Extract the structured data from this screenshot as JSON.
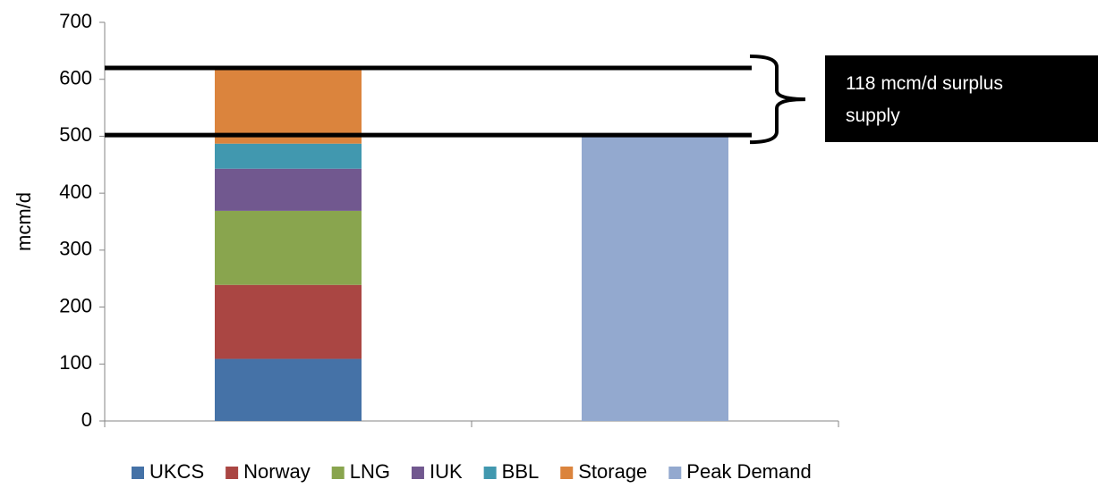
{
  "chart_data": {
    "type": "stacked_bar",
    "y_label": "mcm/d",
    "categories": [
      null,
      null
    ],
    "series": [
      {
        "name": "UKCS",
        "color": "#4572a7",
        "values": [
          109,
          null
        ]
      },
      {
        "name": "Norway",
        "color": "#aa4643",
        "values": [
          130,
          null
        ]
      },
      {
        "name": "LNG",
        "color": "#89a54e",
        "values": [
          130,
          null
        ]
      },
      {
        "name": "IUK",
        "color": "#71588f",
        "values": [
          74,
          null
        ]
      },
      {
        "name": "BBL",
        "color": "#4198af",
        "values": [
          44,
          null
        ]
      },
      {
        "name": "Storage",
        "color": "#db843d",
        "values": [
          133,
          null
        ]
      },
      {
        "name": "Peak Demand",
        "color": "#93a9cf",
        "values": [
          null,
          502
        ]
      }
    ],
    "ylim": [
      0,
      700
    ],
    "yticks": [
      0,
      100,
      200,
      300,
      400,
      500,
      600,
      700
    ],
    "annotation": "118 mcm/d surplus supply",
    "legend": "bottom"
  }
}
